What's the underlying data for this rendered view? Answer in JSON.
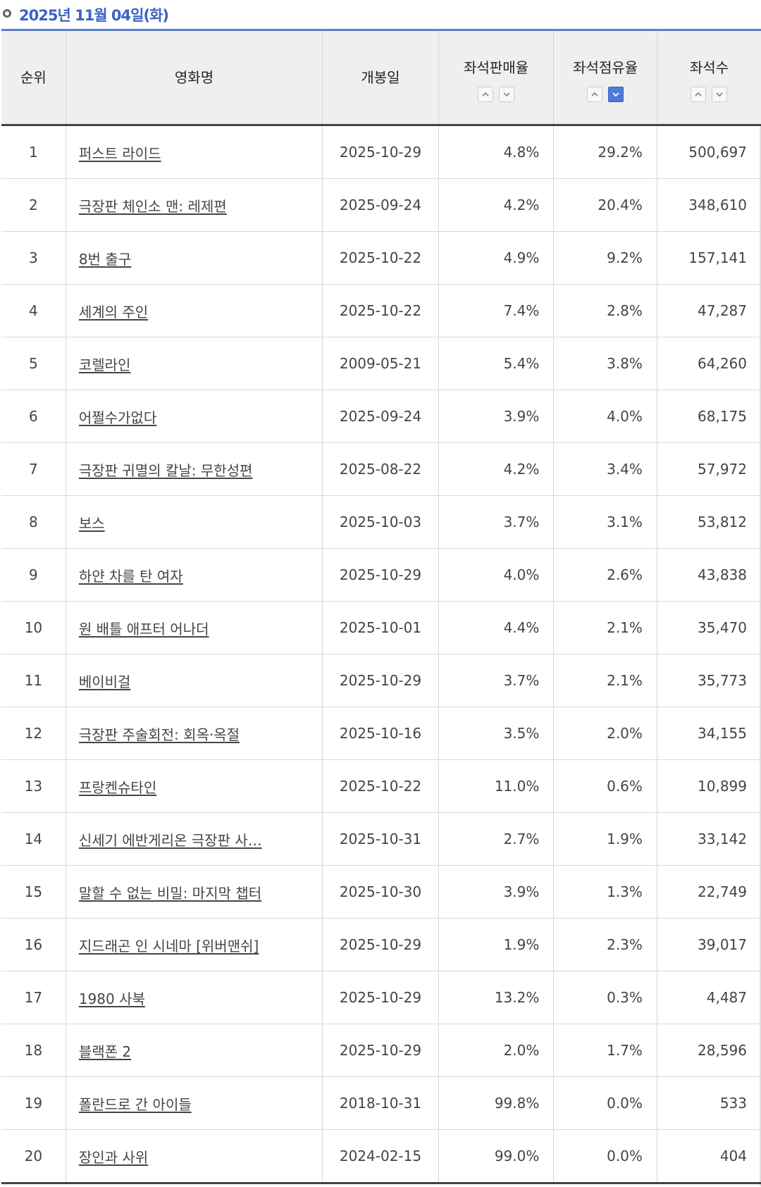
{
  "header": {
    "title": "2025년 11월 04일(화)"
  },
  "columns": {
    "rank": "순위",
    "title": "영화명",
    "release": "개봉일",
    "sale_rate": "좌석판매율",
    "seat_share": "좌석점유율",
    "seats": "좌석수"
  },
  "sort_icons": {
    "up": "chevron-up-icon",
    "down": "chevron-down-icon",
    "active": "seat-share-desc"
  },
  "rows": [
    {
      "rank": "1",
      "title": "퍼스트 라이드",
      "release": "2025-10-29",
      "sale": "4.8%",
      "share": "29.2%",
      "seats": "500,697"
    },
    {
      "rank": "2",
      "title": "극장판 체인소 맨: 레제편",
      "release": "2025-09-24",
      "sale": "4.2%",
      "share": "20.4%",
      "seats": "348,610"
    },
    {
      "rank": "3",
      "title": "8번 출구",
      "release": "2025-10-22",
      "sale": "4.9%",
      "share": "9.2%",
      "seats": "157,141"
    },
    {
      "rank": "4",
      "title": "세계의 주인",
      "release": "2025-10-22",
      "sale": "7.4%",
      "share": "2.8%",
      "seats": "47,287"
    },
    {
      "rank": "5",
      "title": "코렐라인",
      "release": "2009-05-21",
      "sale": "5.4%",
      "share": "3.8%",
      "seats": "64,260"
    },
    {
      "rank": "6",
      "title": "어쩔수가없다",
      "release": "2025-09-24",
      "sale": "3.9%",
      "share": "4.0%",
      "seats": "68,175"
    },
    {
      "rank": "7",
      "title": "극장판 귀멸의 칼날: 무한성편",
      "release": "2025-08-22",
      "sale": "4.2%",
      "share": "3.4%",
      "seats": "57,972"
    },
    {
      "rank": "8",
      "title": "보스",
      "release": "2025-10-03",
      "sale": "3.7%",
      "share": "3.1%",
      "seats": "53,812"
    },
    {
      "rank": "9",
      "title": "하얀 차를 탄 여자",
      "release": "2025-10-29",
      "sale": "4.0%",
      "share": "2.6%",
      "seats": "43,838"
    },
    {
      "rank": "10",
      "title": "원 배틀 애프터 어나더",
      "release": "2025-10-01",
      "sale": "4.4%",
      "share": "2.1%",
      "seats": "35,470"
    },
    {
      "rank": "11",
      "title": "베이비걸",
      "release": "2025-10-29",
      "sale": "3.7%",
      "share": "2.1%",
      "seats": "35,773"
    },
    {
      "rank": "12",
      "title": "극장판 주술회전: 회옥·옥절",
      "release": "2025-10-16",
      "sale": "3.5%",
      "share": "2.0%",
      "seats": "34,155"
    },
    {
      "rank": "13",
      "title": "프랑켄슈타인",
      "release": "2025-10-22",
      "sale": "11.0%",
      "share": "0.6%",
      "seats": "10,899"
    },
    {
      "rank": "14",
      "title": "신세기 에반게리온 극장판 사…",
      "release": "2025-10-31",
      "sale": "2.7%",
      "share": "1.9%",
      "seats": "33,142"
    },
    {
      "rank": "15",
      "title": "말할 수 없는 비밀: 마지막 챕터",
      "release": "2025-10-30",
      "sale": "3.9%",
      "share": "1.3%",
      "seats": "22,749"
    },
    {
      "rank": "16",
      "title": "지드래곤 인 시네마 [위버맨쉬]",
      "release": "2025-10-29",
      "sale": "1.9%",
      "share": "2.3%",
      "seats": "39,017"
    },
    {
      "rank": "17",
      "title": "1980 사북",
      "release": "2025-10-29",
      "sale": "13.2%",
      "share": "0.3%",
      "seats": "4,487"
    },
    {
      "rank": "18",
      "title": "블랙폰 2",
      "release": "2025-10-29",
      "sale": "2.0%",
      "share": "1.7%",
      "seats": "28,596"
    },
    {
      "rank": "19",
      "title": "폴란드로 간 아이들",
      "release": "2018-10-31",
      "sale": "99.8%",
      "share": "0.0%",
      "seats": "533"
    },
    {
      "rank": "20",
      "title": "장인과 사위",
      "release": "2024-02-15",
      "sale": "99.0%",
      "share": "0.0%",
      "seats": "404"
    }
  ]
}
